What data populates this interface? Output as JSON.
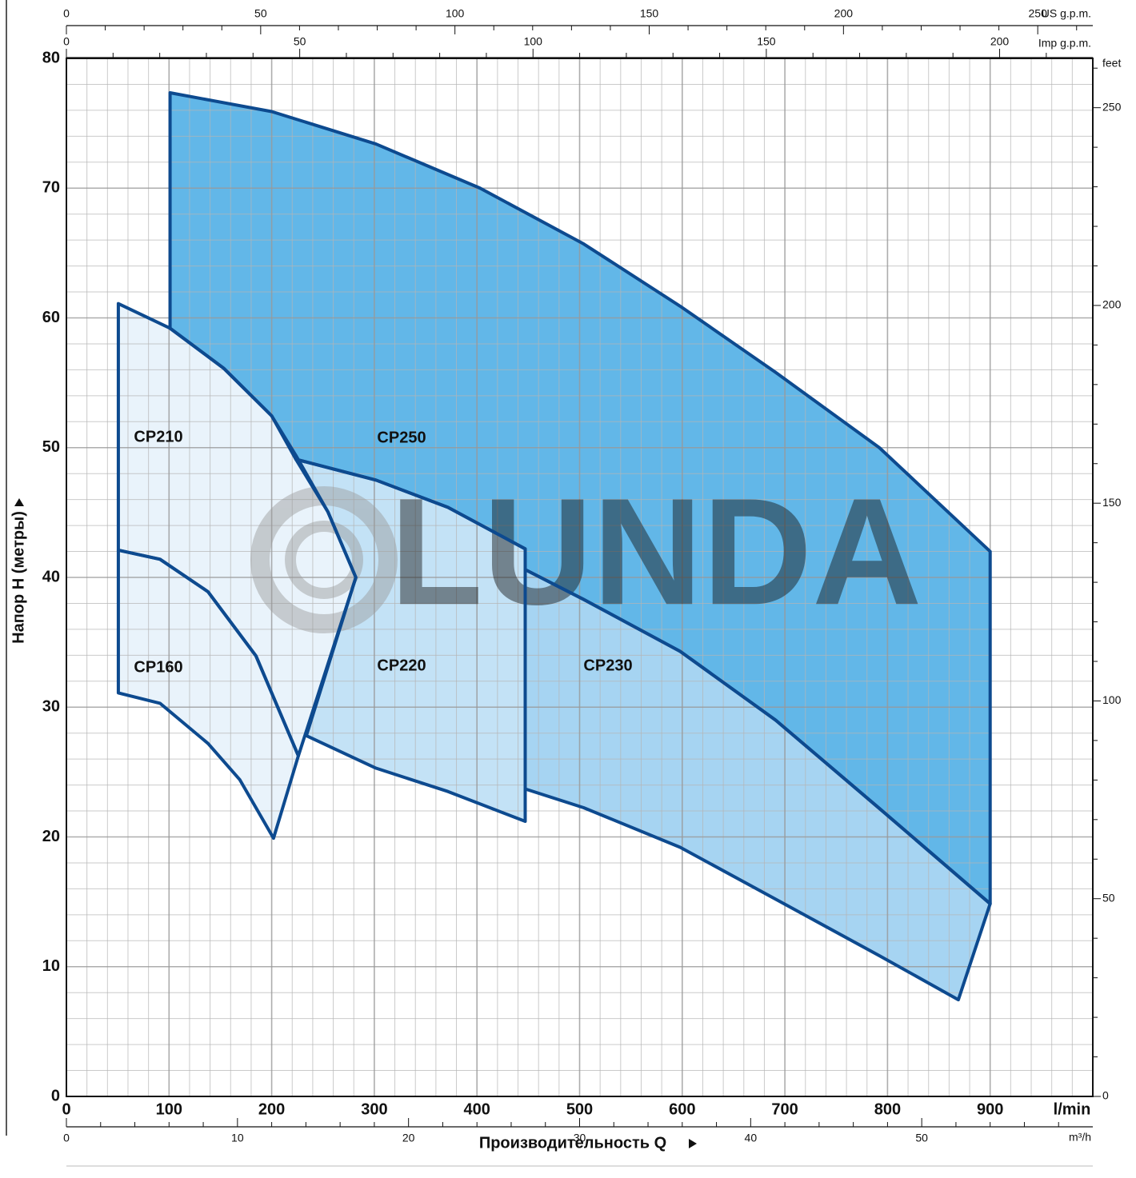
{
  "chart_data": {
    "type": "region",
    "y_label": "Напор H (метры)",
    "x_label": "Производительность Q",
    "x_unit": "l/min",
    "watermark": "LUNDA",
    "xlim": [
      0,
      1000
    ],
    "xticks": [
      0,
      100,
      200,
      300,
      400,
      500,
      600,
      700,
      800,
      900
    ],
    "ylim": [
      0,
      80
    ],
    "yticks": [
      0,
      10,
      20,
      30,
      40,
      50,
      60,
      70,
      80
    ],
    "grid": true,
    "top_axis": {
      "label": "US g.p.m.",
      "lim": [
        0,
        264.17
      ],
      "ticks": [
        0,
        50,
        100,
        150,
        200,
        250
      ]
    },
    "top_axis2": {
      "label": "Imp g.p.m.",
      "lim": [
        0,
        219.97
      ],
      "ticks": [
        0,
        50,
        100,
        150,
        200
      ]
    },
    "bottom_axis2": {
      "label": "m³/h",
      "lim": [
        0,
        60
      ],
      "ticks": [
        0,
        10,
        20,
        30,
        40,
        50
      ]
    },
    "right_axis": {
      "label": "feet",
      "lim": [
        0,
        262.47
      ],
      "ticks": [
        0,
        50,
        100,
        150,
        200,
        250
      ]
    },
    "series": [
      {
        "name": "CP250",
        "color": "#62b7e8",
        "x": [
          101,
          200,
          301.6,
          403,
          504,
          598,
          691,
          792,
          900,
          900,
          792,
          691,
          598,
          504,
          447,
          447,
          371.7,
          301.6,
          223.6,
          200,
          153.5,
          101
        ],
        "y": [
          77.35,
          75.9,
          73.4,
          70.0,
          65.7,
          60.9,
          55.8,
          50.0,
          42.0,
          14.85,
          22.2,
          29.0,
          34.3,
          38.3,
          40.6,
          42.2,
          45.4,
          47.5,
          49.1,
          52.45,
          56.1,
          59.2
        ]
      },
      {
        "name": "CP230",
        "color": "#a6d4f2",
        "x": [
          447,
          504,
          598,
          691,
          792,
          900,
          869,
          792,
          691,
          598,
          504,
          447
        ],
        "y": [
          40.6,
          38.3,
          34.3,
          29.0,
          22.2,
          14.85,
          7.45,
          10.85,
          15.2,
          19.2,
          22.25,
          23.7
        ]
      },
      {
        "name": "CP220",
        "color": "#c3e2f6",
        "x": [
          223.6,
          301.6,
          371.7,
          447,
          447,
          371.7,
          301.6,
          233.8,
          282,
          254.8
        ],
        "y": [
          49.1,
          47.5,
          45.4,
          42.2,
          21.2,
          23.5,
          25.3,
          27.8,
          40.0,
          45.05
        ]
      },
      {
        "name": "CP210",
        "color": "#e9f3fb",
        "x": [
          50.6,
          101,
          153.5,
          200,
          223.6,
          254.8,
          282,
          226,
          184.7,
          137.9,
          91.2,
          50.6
        ],
        "y": [
          61.1,
          59.2,
          56.1,
          52.45,
          49.4,
          45.05,
          40.0,
          26.25,
          33.95,
          38.9,
          41.4,
          42.1
        ]
      },
      {
        "name": "CP160",
        "color": "#e9f3fb",
        "x": [
          50.6,
          91.2,
          137.9,
          184.7,
          226,
          201.8,
          169,
          138,
          91.2,
          50.6
        ],
        "y": [
          42.1,
          41.4,
          38.9,
          33.95,
          26.25,
          19.9,
          24.4,
          27.2,
          30.3,
          31.1
        ]
      }
    ]
  }
}
